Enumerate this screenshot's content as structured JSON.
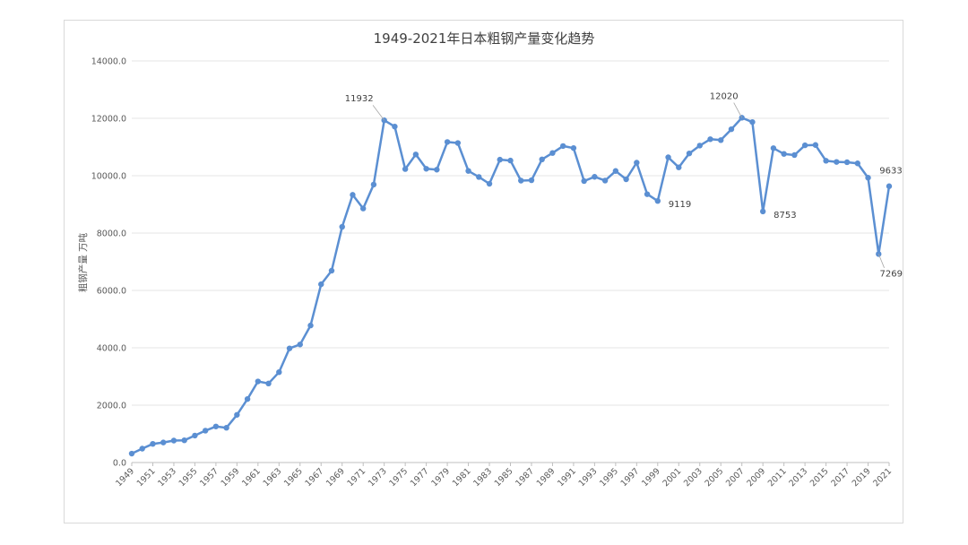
{
  "chart_data": {
    "type": "line",
    "title": "1949-2021年日本粗钢产量变化趋势",
    "ylabel": "粗钢产量 万吨",
    "xlabel": "",
    "ylim": [
      0,
      14000
    ],
    "yticks": [
      "0.0",
      "2000.0",
      "4000.0",
      "6000.0",
      "8000.0",
      "10000.0",
      "12000.0",
      "14000.0"
    ],
    "grid": true,
    "legend": "none",
    "color": "#5b8fd2",
    "x": [
      1949,
      1950,
      1951,
      1952,
      1953,
      1954,
      1955,
      1956,
      1957,
      1958,
      1959,
      1960,
      1961,
      1962,
      1963,
      1964,
      1965,
      1966,
      1967,
      1968,
      1969,
      1970,
      1971,
      1972,
      1973,
      1974,
      1975,
      1976,
      1977,
      1978,
      1979,
      1980,
      1981,
      1982,
      1983,
      1984,
      1985,
      1986,
      1987,
      1988,
      1989,
      1990,
      1991,
      1992,
      1993,
      1994,
      1995,
      1996,
      1997,
      1998,
      1999,
      2000,
      2001,
      2002,
      2003,
      2004,
      2005,
      2006,
      2007,
      2008,
      2009,
      2010,
      2011,
      2012,
      2013,
      2014,
      2015,
      2016,
      2017,
      2018,
      2019,
      2020,
      2021
    ],
    "xtick_labels": [
      1949,
      1951,
      1953,
      1955,
      1957,
      1959,
      1961,
      1963,
      1965,
      1967,
      1969,
      1971,
      1973,
      1975,
      1977,
      1979,
      1981,
      1983,
      1985,
      1987,
      1989,
      1991,
      1993,
      1995,
      1997,
      1999,
      2001,
      2003,
      2005,
      2007,
      2009,
      2011,
      2013,
      2015,
      2017,
      2019,
      2021
    ],
    "values": [
      311,
      484,
      650,
      699,
      766,
      775,
      941,
      1111,
      1257,
      1212,
      1663,
      2214,
      2827,
      2755,
      3150,
      3980,
      4116,
      4778,
      6215,
      6689,
      8217,
      9332,
      8856,
      9690,
      11932,
      11713,
      10231,
      10740,
      10241,
      10210,
      11175,
      11140,
      10166,
      9955,
      9718,
      10559,
      10528,
      9828,
      9842,
      10568,
      10791,
      11034,
      10964,
      9813,
      9961,
      9830,
      10164,
      9874,
      10454,
      9355,
      9119,
      10642,
      10290,
      10776,
      11050,
      11272,
      11240,
      11620,
      12020,
      11870,
      8753,
      10960,
      10760,
      10720,
      11060,
      11070,
      10520,
      10480,
      10470,
      10430,
      9930,
      7269,
      9633
    ],
    "annotations": [
      {
        "label": "11932",
        "year": 1973
      },
      {
        "label": "12020",
        "year": 2007
      },
      {
        "label": "9119",
        "year": 1999
      },
      {
        "label": "8753",
        "year": 2009
      },
      {
        "label": "7269",
        "year": 2020
      },
      {
        "label": "9633",
        "year": 2021
      }
    ]
  }
}
